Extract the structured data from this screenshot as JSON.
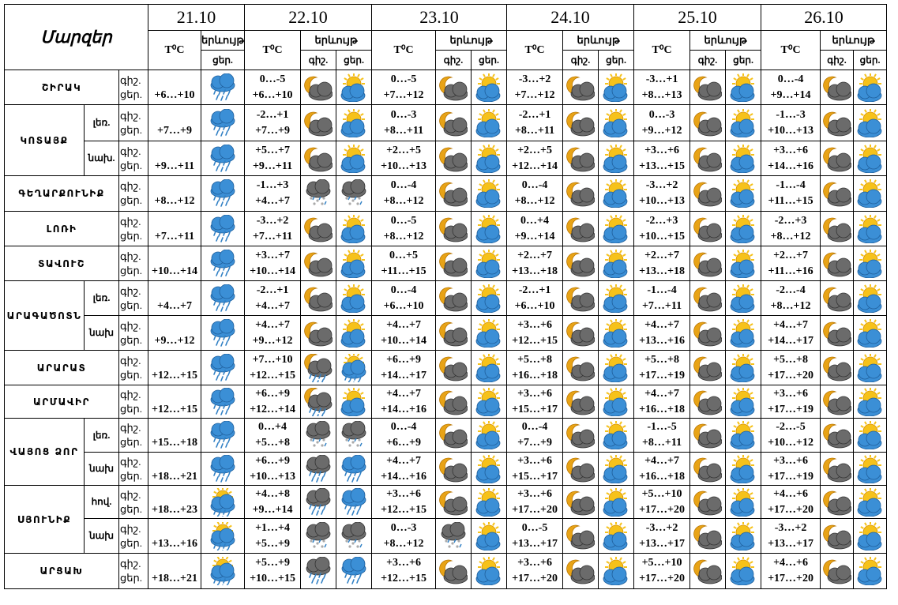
{
  "header": {
    "title": "Մարզեր",
    "temp_label": "T⁰C",
    "phen_label": "երևույթ",
    "day_label": "ցեր.",
    "night_label": "գիշ.",
    "dates": [
      "21.10",
      "22.10",
      "23.10",
      "24.10",
      "25.10",
      "26.10"
    ]
  },
  "rows": [
    {
      "region": "ՇԻՐԱԿ",
      "zone": null,
      "night": "գիշ.",
      "day": "ցեր.",
      "t": [
        "+6…+10",
        "0…-5|+6…+10",
        "0…-5|+7…+12",
        "-3…+2|+7…+12",
        "-3…+1|+8…+13",
        "0…-4|+9…+14"
      ],
      "ic": [
        "rain",
        "moon-cloud",
        "sun-cloud",
        "moon-cloud",
        "sun-cloud",
        "moon-cloud",
        "sun-cloud",
        "moon-cloud",
        "sun-cloud",
        "moon-cloud",
        "sun-cloud"
      ]
    },
    {
      "region": "ԿՈՏԱՅՔ",
      "zone": "լեռ.",
      "night": "գիշ.",
      "day": "ցեր.",
      "t": [
        "+7…+9",
        "-2…+1|+7…+9",
        "0…-3|+8…+11",
        "-2…+1|+8…+11",
        "0…-3|+9…+12",
        "-1…-3|+10…+13"
      ],
      "ic": [
        "rain",
        "moon-cloud",
        "sun-cloud",
        "moon-cloud",
        "sun-cloud",
        "moon-cloud",
        "sun-cloud",
        "moon-cloud",
        "sun-cloud",
        "moon-cloud",
        "sun-cloud"
      ]
    },
    {
      "region": null,
      "zone": "նախ.",
      "night": "գիշ.",
      "day": "ցեր.",
      "t": [
        "+9…+11",
        "+5…+7|+9…+11",
        "+2…+5|+10…+13",
        "+2…+5|+12…+14",
        "+3…+6|+13…+15",
        "+3…+6|+14…+16"
      ],
      "ic": [
        "rain",
        "moon-cloud",
        "sun-cloud",
        "moon-cloud",
        "sun-cloud",
        "moon-cloud",
        "sun-cloud",
        "moon-cloud",
        "sun-cloud",
        "moon-cloud",
        "sun-cloud"
      ]
    },
    {
      "region": "ԳԵՂԱՐՔՈՒՆԻՔ",
      "zone": null,
      "night": "գիշ.",
      "day": "ցեր.",
      "t": [
        "+8…+12",
        "-1…+3|+4…+7",
        "0…-4|+8…+12",
        "0…-4|+8…+12",
        "-3…+2|+10…+13",
        "-1…-4|+11…+15"
      ],
      "ic": [
        "rain",
        "sleet",
        "sleet",
        "moon-cloud",
        "sun-cloud",
        "moon-cloud",
        "sun-cloud",
        "moon-cloud",
        "sun-cloud",
        "moon-cloud",
        "sun-cloud"
      ]
    },
    {
      "region": "ԼՈՌԻ",
      "zone": null,
      "night": "գիշ.",
      "day": "ցեր.",
      "t": [
        "+7…+11",
        "-3…+2|+7…+11",
        "0…-5|+8…+12",
        "0…+4|+9…+14",
        "-2…+3|+10…+15",
        "-2…+3|+8…+12"
      ],
      "ic": [
        "rain",
        "moon-cloud",
        "sun-cloud",
        "moon-cloud",
        "sun-cloud",
        "moon-cloud",
        "sun-cloud",
        "moon-cloud",
        "sun-cloud",
        "moon-cloud",
        "sun-cloud"
      ]
    },
    {
      "region": "ՏԱՎՈՒՇ",
      "zone": null,
      "night": "գիշ.",
      "day": "ցեր.",
      "t": [
        "+10…+14",
        "+3…+7|+10…+14",
        "0…+5|+11…+15",
        "+2…+7|+13…+18",
        "+2…+7|+13…+18",
        "+2…+7|+11…+16"
      ],
      "ic": [
        "rain",
        "moon-cloud",
        "sun-cloud",
        "moon-cloud",
        "sun-cloud",
        "moon-cloud",
        "sun-cloud",
        "moon-cloud",
        "sun-cloud",
        "moon-cloud",
        "sun-cloud"
      ]
    },
    {
      "region": "ԱՐԱԳԱԾՈՏՆ",
      "zone": "լեռ.",
      "night": "գիշ.",
      "day": "ցեր.",
      "t": [
        "+4…+7",
        "-2…+1|+4…+7",
        "0…-4|+6…+10",
        "-2…+1|+6…+10",
        "-1…-4|+7…+11",
        "-2…-4|+8…+12"
      ],
      "ic": [
        "rain",
        "moon-cloud",
        "sun-cloud",
        "moon-cloud",
        "sun-cloud",
        "moon-cloud",
        "sun-cloud",
        "moon-cloud",
        "sun-cloud",
        "moon-cloud",
        "sun-cloud"
      ]
    },
    {
      "region": null,
      "zone": "նախ",
      "night": "գիշ.",
      "day": "ցեր.",
      "t": [
        "+9…+12",
        "+4…+7|+9…+12",
        "+4…+7|+10…+14",
        "+3…+6|+12…+15",
        "+4…+7|+13…+16",
        "+4…+7|+14…+17"
      ],
      "ic": [
        "rain",
        "moon-cloud",
        "sun-cloud",
        "moon-cloud",
        "sun-cloud",
        "moon-cloud",
        "sun-cloud",
        "moon-cloud",
        "sun-cloud",
        "moon-cloud",
        "sun-cloud"
      ]
    },
    {
      "region": "ԱՐԱՐԱՏ",
      "zone": null,
      "night": "գիշ.",
      "day": "ցեր.",
      "t": [
        "+12…+15",
        "+7…+10|+12…+15",
        "+6…+9|+14…+17",
        "+5…+8|+16…+18",
        "+5…+8|+17…+19",
        "+5…+8|+17…+20"
      ],
      "ic": [
        "rain",
        "moon-rain",
        "sun-rain",
        "moon-cloud",
        "sun-cloud",
        "moon-cloud",
        "sun-cloud",
        "moon-cloud",
        "sun-cloud",
        "moon-cloud",
        "sun-cloud"
      ]
    },
    {
      "region": "ԱՐՄԱՎԻՐ",
      "zone": null,
      "night": "գիշ.",
      "day": "ցեր.",
      "t": [
        "+12…+15",
        "+6…+9|+12…+14",
        "+4…+7|+14…+16",
        "+3…+6|+15…+17",
        "+4…+7|+16…+18",
        "+3…+6|+17…+19"
      ],
      "ic": [
        "rain",
        "moon-rain",
        "sun-cloud",
        "moon-cloud",
        "sun-cloud",
        "moon-cloud",
        "sun-cloud",
        "moon-cloud",
        "sun-cloud",
        "moon-cloud",
        "sun-cloud"
      ]
    },
    {
      "region": "ՎԱՅՈՑ ՁՈՐ",
      "zone": "լեռ.",
      "night": "գիշ.",
      "day": "ցեր.",
      "t": [
        "+15…+18",
        "0…+4|+5…+8",
        "0…-4|+6…+9",
        "0…-4|+7…+9",
        "-1…-5|+8…+11",
        "-2…-5|+10…+12"
      ],
      "ic": [
        "rain",
        "sleet",
        "sleet",
        "moon-cloud",
        "sun-cloud",
        "moon-cloud",
        "sun-cloud",
        "moon-cloud",
        "sun-cloud",
        "moon-cloud",
        "sun-cloud"
      ]
    },
    {
      "region": null,
      "zone": "նախ",
      "night": "գիշ.",
      "day": "ցեր.",
      "t": [
        "+18…+21",
        "+6…+9|+10…+13",
        "+4…+7|+14…+16",
        "+3…+6|+15…+17",
        "+4…+7|+16…+18",
        "+3…+6|+17…+19"
      ],
      "ic": [
        "rain",
        "dark-rain",
        "rain",
        "moon-cloud",
        "sun-cloud",
        "moon-cloud",
        "sun-cloud",
        "moon-cloud",
        "sun-cloud",
        "moon-cloud",
        "sun-cloud"
      ]
    },
    {
      "region": "ՍՅՈՒՆԻՔ",
      "zone": "հով.",
      "night": "գիշ.",
      "day": "ցեր.",
      "t": [
        "+18…+23",
        "+4…+8|+9…+14",
        "+3…+6|+12…+15",
        "+3…+6|+17…+20",
        "+5…+10|+17…+20",
        "+4…+6|+17…+20"
      ],
      "ic": [
        "sun-rain",
        "dark-rain",
        "rain",
        "moon-cloud",
        "sun-cloud",
        "moon-cloud",
        "sun-cloud",
        "moon-cloud",
        "sun-cloud",
        "moon-cloud",
        "sun-cloud"
      ]
    },
    {
      "region": null,
      "zone": "նախ",
      "night": "գիշ.",
      "day": "ցեր.",
      "t": [
        "+13…+16",
        "+1…+4|+5…+9",
        "0…-3|+8…+12",
        "0…-5|+13…+17",
        "-3…+2|+13…+17",
        "-3…+2|+13…+17"
      ],
      "ic": [
        "sun-rain",
        "sleet",
        "sleet",
        "sleet",
        "sun-cloud",
        "moon-cloud",
        "sun-cloud",
        "moon-cloud",
        "sun-cloud",
        "moon-cloud",
        "sun-cloud"
      ]
    },
    {
      "region": "ԱՐՑԱԽ",
      "zone": null,
      "night": "գիշ.",
      "day": "ցեր.",
      "t": [
        "+18…+21",
        "+5…+9|+10…+15",
        "+3…+6|+12…+15",
        "+3…+6|+17…+20",
        "+5…+10|+17…+20",
        "+4…+6|+17…+20"
      ],
      "ic": [
        "sun-rain",
        "dark-rain",
        "rain",
        "moon-cloud",
        "sun-cloud",
        "moon-cloud",
        "sun-cloud",
        "moon-cloud",
        "sun-cloud",
        "moon-cloud",
        "sun-cloud"
      ]
    }
  ],
  "colors": {
    "sun": "#f6c21a",
    "moon": "#e8a316",
    "cloud_gray": "#6b6b6b",
    "cloud_blue": "#3b8fd6",
    "border": "#000000"
  }
}
